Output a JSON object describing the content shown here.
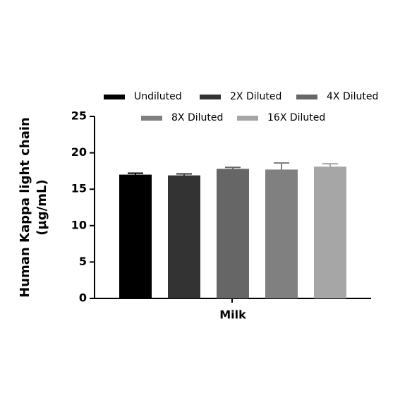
{
  "chart_data": {
    "type": "bar",
    "y_label": [
      "Human Kappa light chain",
      "(µg/mL)"
    ],
    "categories": [
      "Milk"
    ],
    "series": [
      {
        "name": "Undiluted",
        "color": "#000000",
        "values": [
          17.0
        ],
        "errors": [
          0.2
        ]
      },
      {
        "name": "2X Diluted",
        "color": "#333333",
        "values": [
          16.9
        ],
        "errors": [
          0.2
        ]
      },
      {
        "name": "4X Diluted",
        "color": "#666666",
        "values": [
          17.8
        ],
        "errors": [
          0.2
        ]
      },
      {
        "name": "8X Diluted",
        "color": "#808080",
        "values": [
          17.7
        ],
        "errors": [
          0.9
        ]
      },
      {
        "name": "16X Diluted",
        "color": "#a6a6a6",
        "values": [
          18.1
        ],
        "errors": [
          0.4
        ]
      }
    ],
    "ylim": [
      0,
      25
    ],
    "yticks": [
      0,
      5,
      10,
      15,
      20,
      25
    ],
    "grid": false
  }
}
